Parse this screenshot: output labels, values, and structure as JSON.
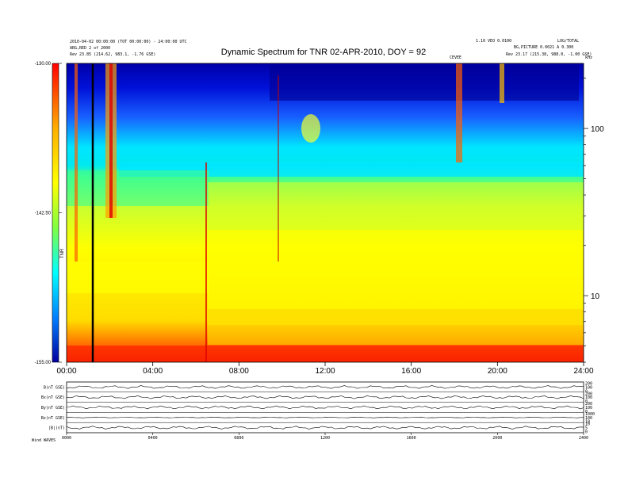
{
  "header": {
    "title": "Dynamic Spectrum for TNR 02-APR-2010, DOY = 92",
    "left_line1": "2010-04-02 00:00:00 (TOT 00:00:00) - 24:00:00 UTC",
    "left_line2": "ARG,RED 2 of 2000",
    "left_line3": "Rev  23.85 (214.62, 983.1, -1.76 GSE)",
    "right_line1": "1.10 VEO 0.0100",
    "right_line2": "LOG/TOTAL",
    "right_line3": "BG,PICTURE 0.0021 A 0.300",
    "right_line4": "Rev  23.17 (215.38, 988.0, -1.00 GSE)",
    "mid_label": "CEVEE",
    "corner_label": "kHz"
  },
  "chart_data": {
    "type": "heatmap",
    "title": "Dynamic Spectrum for TNR 02-APR-2010, DOY = 92",
    "x_ticks": [
      "00:00",
      "04:00",
      "08:00",
      "12:00",
      "16:00",
      "20:00",
      "24:00"
    ],
    "x_range_hours": [
      0,
      24
    ],
    "y_ticks": [
      "100",
      "10"
    ],
    "y_scale": "log",
    "y_range_khz": [
      4,
      245
    ],
    "colorbar": {
      "ticks": [
        "-130.00",
        "-142.50",
        "-155.00"
      ],
      "label": "TNR",
      "range": [
        -155,
        -130
      ]
    },
    "colors": {
      "low": "#d00000",
      "mid": "#ffff00",
      "high": "#00008a",
      "background": "#00e5ff"
    },
    "panels": [
      {
        "label": "B(nT GSE)",
        "right_ticks": [
          "200",
          "100",
          "0"
        ]
      },
      {
        "label": "Bx(nT GSE)",
        "right_ticks": [
          "200",
          "100",
          "0"
        ]
      },
      {
        "label": "By(nT GSE)",
        "right_ticks": [
          "200",
          "100",
          "0"
        ]
      },
      {
        "label": "Bz(nT GSE)",
        "right_ticks": [
          "1000",
          "100",
          "10"
        ]
      },
      {
        "label": "|B|(nT)",
        "right_ticks": [
          "10",
          "5",
          "0"
        ]
      }
    ],
    "bottom_axis": {
      "ticks": [
        "0000",
        "0400",
        "0800",
        "1200",
        "1600",
        "2000",
        "2400"
      ],
      "label": "Wind  WAVES"
    }
  }
}
